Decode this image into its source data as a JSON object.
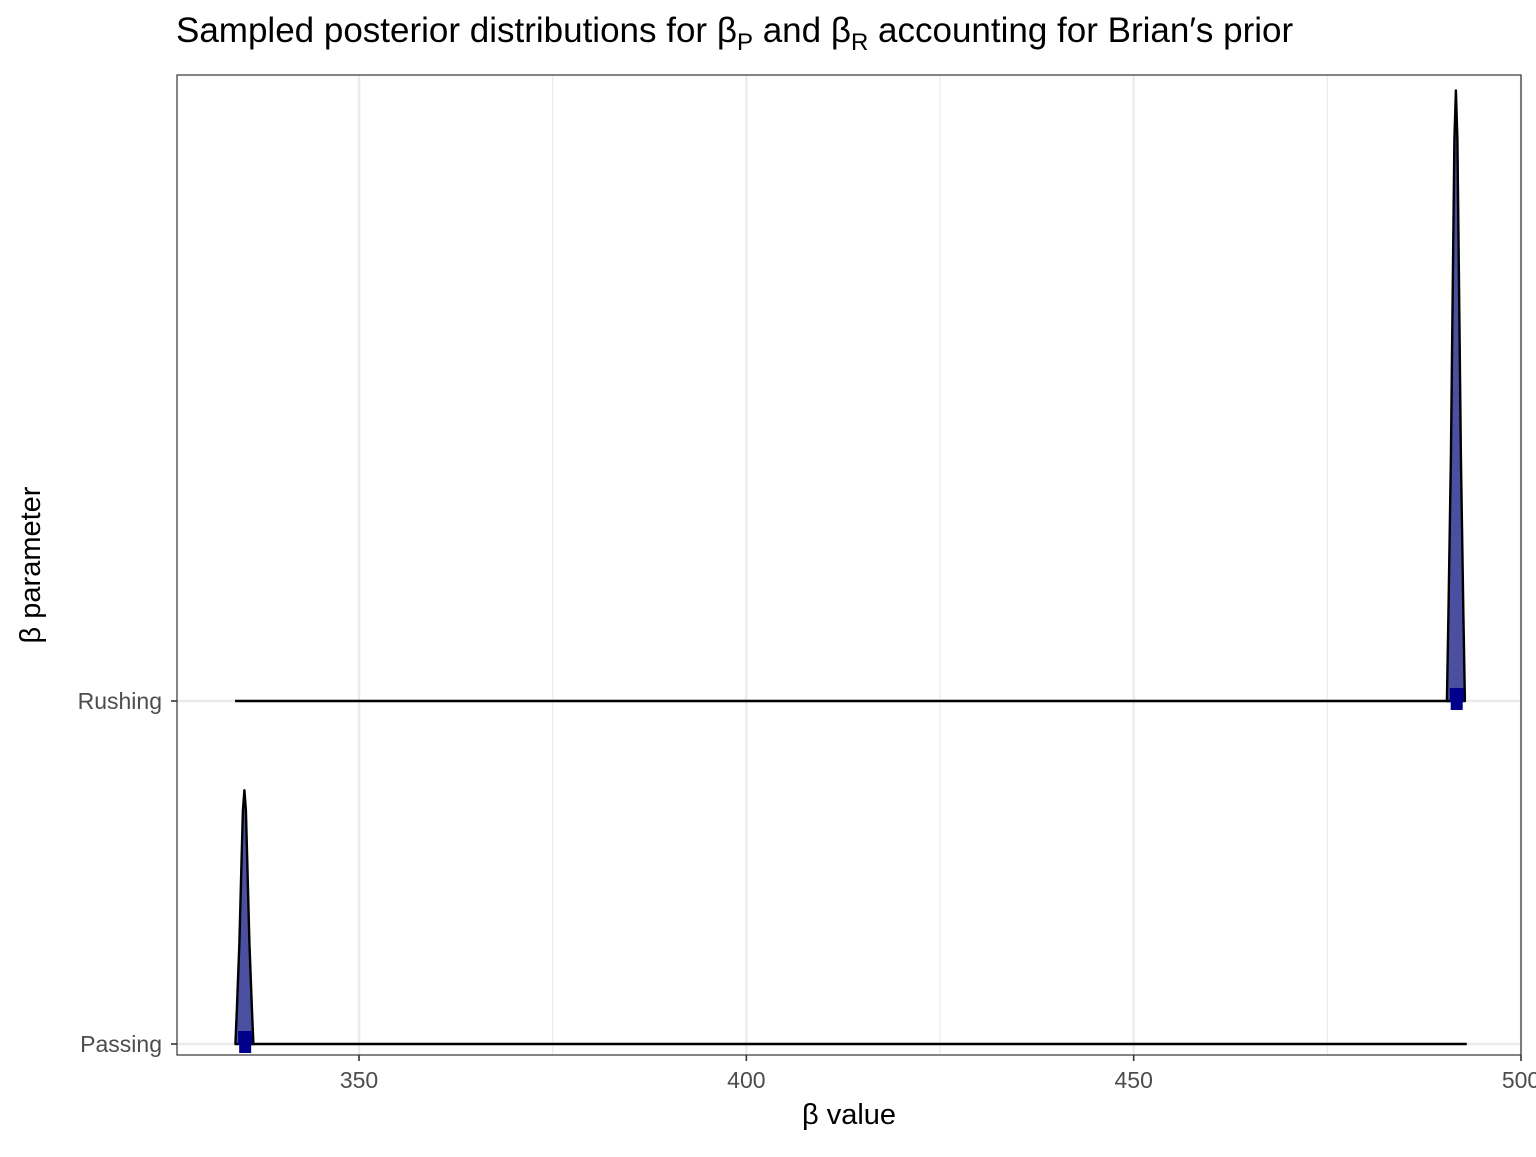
{
  "chart_data": {
    "type": "ridgeline",
    "title": {
      "part1": "Sampled posterior distributions for ",
      "beta": "β",
      "sub_p": "P",
      "part2": " and ",
      "sub_r": "R",
      "part3": " accounting for Brian′s prior"
    },
    "xlabel": "β value",
    "ylabel": "β parameter",
    "xlim": [
      326.5,
      500
    ],
    "x_ticks": [
      350,
      400,
      450,
      500
    ],
    "x_minor_ticks": [
      375,
      425,
      475
    ],
    "categories": [
      "Passing",
      "Rushing"
    ],
    "grid": true,
    "colors": {
      "fill": "#4a4fa0",
      "outline": "#000000",
      "point": "#00008b",
      "grid": "#ebebeb"
    },
    "series": [
      {
        "name": "Passing",
        "mode": 335.2,
        "point_estimate": 335.3,
        "interval": [
          335,
          493
        ],
        "density_height": 0.74
      },
      {
        "name": "Rushing",
        "mode": 491.6,
        "point_estimate": 491.7,
        "interval": [
          334,
          492
        ],
        "density_height": 1.78
      }
    ]
  }
}
